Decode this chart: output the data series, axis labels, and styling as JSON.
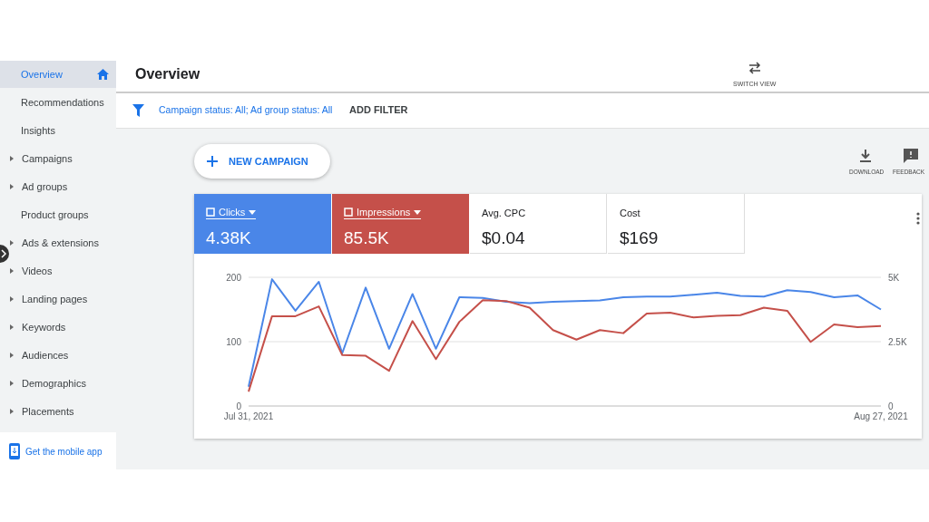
{
  "chart_data": {
    "type": "line",
    "title": "Overview",
    "categories": [
      "Jul 31, 2021",
      null,
      null,
      null,
      null,
      null,
      null,
      null,
      null,
      null,
      null,
      null,
      null,
      null,
      null,
      null,
      null,
      null,
      null,
      null,
      null,
      null,
      null,
      null,
      null,
      null,
      null,
      "Aug 27, 2021"
    ],
    "series": [
      {
        "name": "Clicks",
        "color": "#4a86e8",
        "values": [
          30,
          197,
          148,
          193,
          82,
          184,
          89,
          174,
          89,
          169,
          168,
          162,
          160,
          162,
          163,
          164,
          169,
          170,
          170,
          173,
          176,
          171,
          170,
          180,
          177,
          169,
          172,
          150
        ]
      },
      {
        "name": "Impressions",
        "color": "#c5504a",
        "axis": "y2",
        "values": [
          560,
          3490,
          3490,
          3870,
          1980,
          1950,
          1370,
          3300,
          1820,
          3270,
          4110,
          4080,
          3820,
          2950,
          2580,
          2950,
          2830,
          3590,
          3630,
          3440,
          3500,
          3530,
          3820,
          3700,
          2490,
          3170,
          3060,
          3110
        ]
      }
    ],
    "ylim": [
      0,
      200
    ],
    "yticks": [
      0,
      100,
      200
    ],
    "y2lim": [
      0,
      5000
    ],
    "y2ticks": [
      0,
      {
        "value": 2500,
        "label": "2.5K"
      },
      {
        "value": 5000,
        "label": "5K"
      }
    ],
    "grid": "y",
    "legend": "top left",
    "marker": "none",
    "line_style": "solid",
    "annotations": [
      "Overview",
      "Recommendations",
      "Insights",
      "Campaigns",
      "Ad groups",
      "Product groups",
      "Ads & extensions",
      "Videos",
      "Landing pages",
      "Keywords",
      "Audiences",
      "Demographics",
      "Placements",
      "Get the mobile app",
      "SWITCH VIEW",
      "Campaign status: All; Ad group status: All",
      "ADD FILTER",
      "NEW CAMPAIGN",
      "DOWNLOAD",
      "FEEDBACK",
      "4.38K",
      "85.5K",
      "Avg. CPC",
      "$0.04",
      "Cost",
      "$169"
    ]
  }
}
